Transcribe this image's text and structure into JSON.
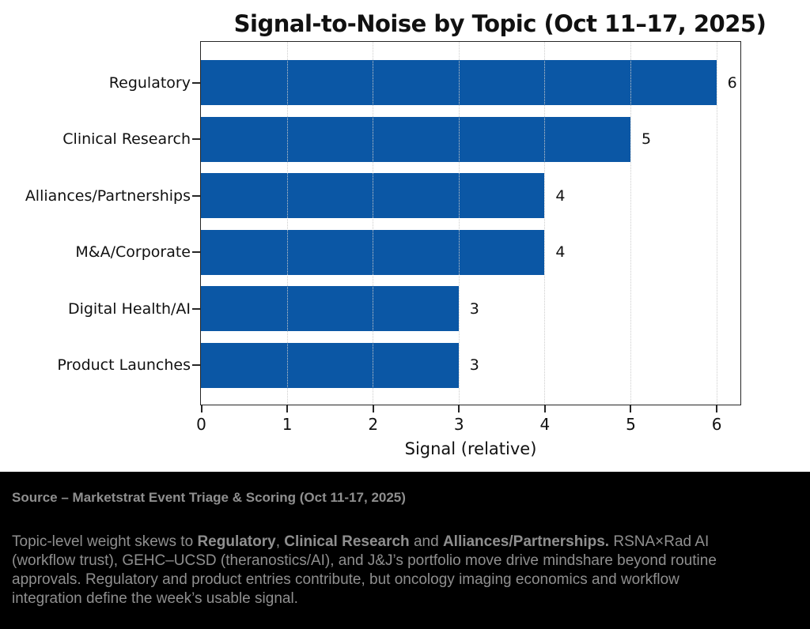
{
  "chart_data": {
    "type": "bar",
    "orientation": "horizontal",
    "title": "Signal-to-Noise by Topic (Oct 11–17, 2025)",
    "categories": [
      "Regulatory",
      "Clinical Research",
      "Alliances/Partnerships",
      "M&A/Corporate",
      "Digital Health/AI",
      "Product Launches"
    ],
    "values": [
      6,
      5,
      4,
      4,
      3,
      3
    ],
    "xlabel": "Signal (relative)",
    "xticks": [
      0,
      1,
      2,
      3,
      4,
      5,
      6
    ],
    "xlim": [
      0,
      6.28
    ],
    "grid": "dotted-vertical",
    "legend": false,
    "bar_color": "#0b57a5",
    "value_label_color": "#111111"
  },
  "footer": {
    "source_line": "Source – Marketstrat Event Triage & Scoring (Oct 11-17, 2025)",
    "paragraph_segments": [
      {
        "text": "Topic-level weight skews to ",
        "bold": false
      },
      {
        "text": "Regulatory",
        "bold": true
      },
      {
        "text": ", ",
        "bold": false
      },
      {
        "text": "Clinical Research",
        "bold": true
      },
      {
        "text": " and ",
        "bold": false
      },
      {
        "text": "Alliances/Partnerships.",
        "bold": true
      },
      {
        "text": " RSNA×Rad AI (workflow trust), GEHC–UCSD (theranostics/AI), and J&J’s portfolio move drive mindshare beyond routine approvals. Regulatory and product entries contribute, but oncology imaging economics and workflow integration define the week’s usable signal.",
        "bold": false
      }
    ],
    "bg_color": "#000000",
    "text_color": "#8f8f8f"
  }
}
